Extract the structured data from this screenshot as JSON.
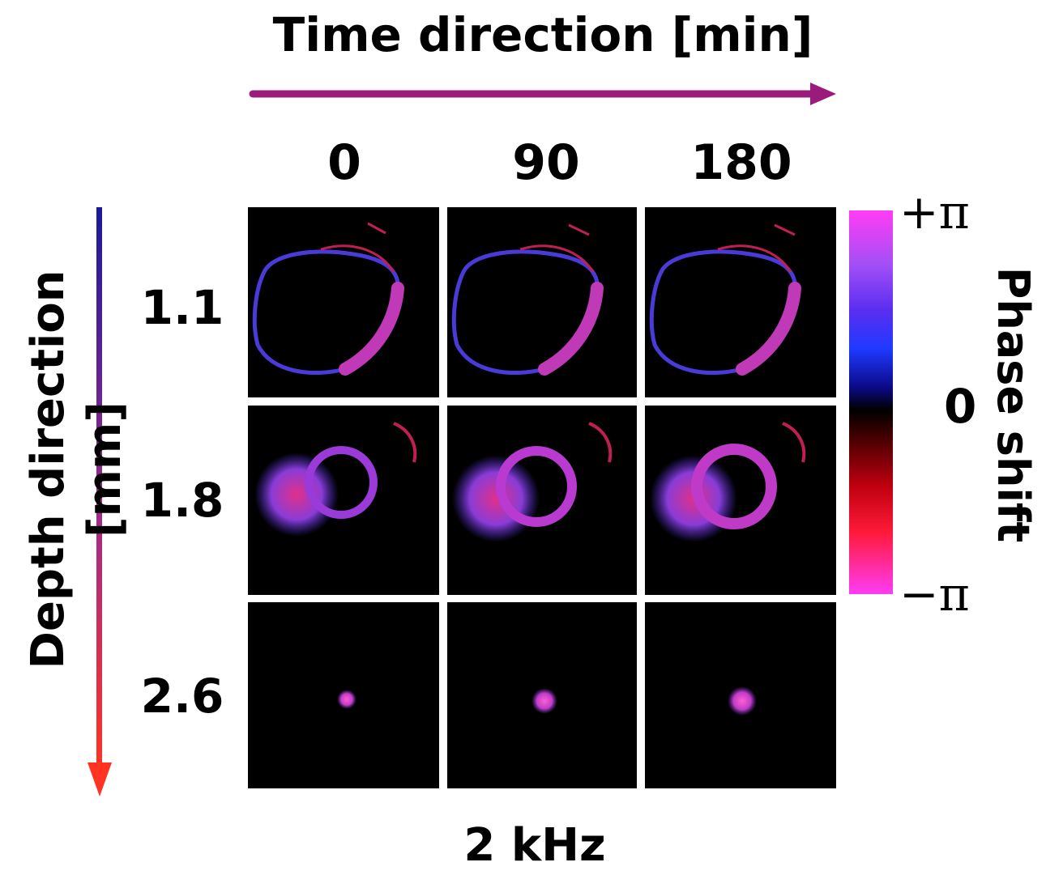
{
  "title": "Time direction [min]",
  "time_labels": [
    "0",
    "90",
    "180"
  ],
  "depth_axis_label": "Depth direction [mm]",
  "depth_labels": [
    "1.1",
    "1.8",
    "2.6"
  ],
  "colorbar": {
    "label": "Phase shift",
    "top_label": "+π",
    "mid_label": "0",
    "bottom_label": "−π"
  },
  "footer": "2 kHz",
  "colors": {
    "time_arrow": "#9b1b7d",
    "depth_arrow_start": "#1a1a9a",
    "depth_arrow_end": "#ff3322"
  }
}
